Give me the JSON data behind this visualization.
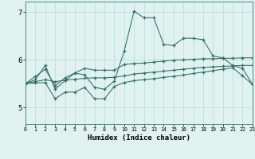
{
  "xlabel": "Humidex (Indice chaleur)",
  "x_values": [
    0,
    1,
    2,
    3,
    4,
    5,
    6,
    7,
    8,
    9,
    10,
    11,
    12,
    13,
    14,
    15,
    16,
    17,
    18,
    19,
    20,
    21,
    22,
    23
  ],
  "line1": [
    5.5,
    5.65,
    5.8,
    5.45,
    5.62,
    5.72,
    5.68,
    5.42,
    5.38,
    5.55,
    6.18,
    7.02,
    6.88,
    6.88,
    6.32,
    6.3,
    6.45,
    6.45,
    6.42,
    6.08,
    6.04,
    5.88,
    5.82,
    5.48
  ],
  "line2": [
    5.5,
    5.58,
    5.88,
    5.38,
    5.56,
    5.72,
    5.82,
    5.78,
    5.78,
    5.78,
    5.9,
    5.92,
    5.93,
    5.95,
    5.97,
    5.99,
    6.0,
    6.01,
    6.02,
    6.02,
    6.03,
    6.03,
    6.04,
    6.04
  ],
  "line3": [
    5.5,
    5.54,
    5.58,
    5.54,
    5.57,
    5.59,
    5.61,
    5.62,
    5.62,
    5.63,
    5.66,
    5.7,
    5.72,
    5.74,
    5.76,
    5.78,
    5.8,
    5.82,
    5.84,
    5.85,
    5.86,
    5.87,
    5.88,
    5.88
  ],
  "line4": [
    5.5,
    5.51,
    5.52,
    5.18,
    5.32,
    5.32,
    5.42,
    5.18,
    5.18,
    5.44,
    5.52,
    5.56,
    5.58,
    5.6,
    5.63,
    5.65,
    5.68,
    5.71,
    5.74,
    5.77,
    5.8,
    5.83,
    5.66,
    5.48
  ],
  "line_color": "#336b65",
  "bg_color": "#dff2f0",
  "grid_color": "#b8dbd8",
  "ylim": [
    4.65,
    7.22
  ],
  "xlim": [
    0,
    23
  ],
  "yticks": [
    5,
    6,
    7
  ],
  "xticks": [
    0,
    1,
    2,
    3,
    4,
    5,
    6,
    7,
    8,
    9,
    10,
    11,
    12,
    13,
    14,
    15,
    16,
    17,
    18,
    19,
    20,
    21,
    22,
    23
  ]
}
